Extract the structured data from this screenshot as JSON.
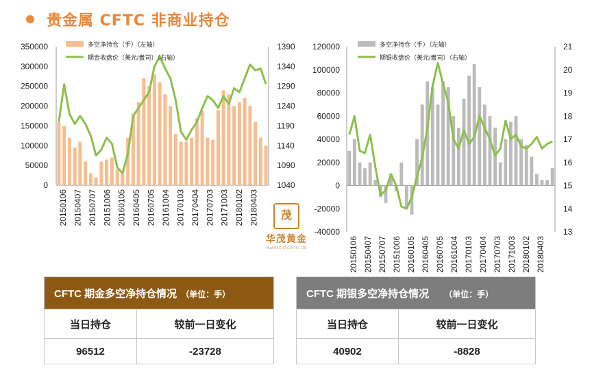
{
  "page": {
    "title": "贵金属 CFTC 非商业持仓",
    "logo_name": "华茂黄金",
    "logo_sub": "HUAMAO GOLD CO.,LTD",
    "logo_glyph": "茂"
  },
  "chart_data": [
    {
      "type": "bar",
      "legend": [
        "多空净持仓（手）（左轴）",
        "期金收盘价（美元/盎司）（右轴）"
      ],
      "x_tick_labels": [
        "20150106",
        "20150407",
        "20150707",
        "20151006",
        "20160105",
        "20160405",
        "20160705",
        "20161004",
        "20170103",
        "20170404",
        "20170703",
        "20171003",
        "20180102",
        "20180403"
      ],
      "y_left_ticks": [
        "0",
        "50000",
        "100000",
        "150000",
        "200000",
        "250000",
        "300000",
        "350000"
      ],
      "y_right_ticks": [
        "1040",
        "1090",
        "1140",
        "1190",
        "1240",
        "1290",
        "1340",
        "1390"
      ],
      "ylim_left": [
        0,
        350000
      ],
      "ylim_right": [
        1040,
        1390
      ],
      "colors": {
        "bars": "#f6be90",
        "line": "#8cbf4c"
      },
      "series": [
        {
          "axis": "left",
          "kind": "bar",
          "values": [
            160000,
            150000,
            120000,
            95000,
            110000,
            60000,
            30000,
            20000,
            60000,
            65000,
            70000,
            40000,
            30000,
            120000,
            180000,
            210000,
            270000,
            250000,
            280000,
            260000,
            230000,
            200000,
            130000,
            110000,
            110000,
            120000,
            170000,
            190000,
            120000,
            115000,
            190000,
            240000,
            230000,
            200000,
            210000,
            220000,
            200000,
            160000,
            120000,
            100000
          ]
        },
        {
          "axis": "right",
          "kind": "line",
          "values": [
            1200,
            1295,
            1220,
            1195,
            1215,
            1195,
            1165,
            1115,
            1130,
            1160,
            1145,
            1085,
            1070,
            1120,
            1215,
            1235,
            1255,
            1275,
            1340,
            1365,
            1335,
            1310,
            1255,
            1175,
            1155,
            1180,
            1200,
            1235,
            1265,
            1255,
            1235,
            1265,
            1245,
            1285,
            1275,
            1310,
            1345,
            1330,
            1335,
            1295
          ]
        }
      ]
    },
    {
      "type": "bar",
      "legend": [
        "多空净持仓（手）（左轴）",
        "期银收盘价（美元/盎司）（右轴）"
      ],
      "x_tick_labels": [
        "20150106",
        "20150407",
        "20150707",
        "20151006",
        "20160105",
        "20160405",
        "20160705",
        "20161004",
        "20170103",
        "20170404",
        "20170703",
        "20171003",
        "20180102",
        "20180403"
      ],
      "y_left_ticks": [
        "-40000",
        "-20000",
        "0",
        "20000",
        "40000",
        "60000",
        "80000",
        "100000",
        "120000"
      ],
      "y_right_ticks": [
        "13",
        "14",
        "15",
        "16",
        "17",
        "18",
        "19",
        "20",
        "21"
      ],
      "ylim_left": [
        -40000,
        120000
      ],
      "ylim_right": [
        13,
        21
      ],
      "colors": {
        "bars": "#bbbbbb",
        "line": "#8cbf4c"
      },
      "series": [
        {
          "axis": "left",
          "kind": "bar",
          "values": [
            30000,
            40000,
            20000,
            15000,
            20000,
            5000,
            -10000,
            -15000,
            10000,
            -5000,
            20000,
            -20000,
            -25000,
            40000,
            70000,
            90000,
            85000,
            70000,
            90000,
            85000,
            60000,
            50000,
            75000,
            95000,
            105000,
            85000,
            70000,
            60000,
            50000,
            20000,
            40000,
            55000,
            60000,
            40000,
            35000,
            25000,
            10000,
            5000,
            5000,
            15000
          ]
        },
        {
          "axis": "right",
          "kind": "line",
          "values": [
            17.2,
            18.0,
            16.5,
            16.4,
            17.2,
            15.8,
            14.6,
            14.8,
            15.5,
            15.0,
            14.1,
            14.0,
            14.5,
            15.4,
            16.2,
            17.5,
            19.3,
            20.3,
            19.4,
            18.6,
            17.0,
            16.6,
            17.4,
            16.8,
            17.1,
            18.0,
            17.5,
            17.0,
            16.3,
            16.6,
            17.8,
            17.0,
            17.2,
            16.7,
            16.6,
            16.8,
            17.1,
            16.6,
            16.8,
            16.9
          ]
        }
      ]
    }
  ],
  "tables": [
    {
      "title": "CFTC 期金多空净持仓情况",
      "unit": "（单位：手）",
      "header_color": "#8c5a14",
      "col1": "当日持仓",
      "col2": "较前一日变化",
      "val1": "96512",
      "val2": "-23728"
    },
    {
      "title": "CFTC 期银多空净持仓情况",
      "unit": "（单位：手）",
      "header_color": "#7d7d7d",
      "col1": "当日持仓",
      "col2": "较前一日变化",
      "val1": "40902",
      "val2": "-8828"
    }
  ]
}
